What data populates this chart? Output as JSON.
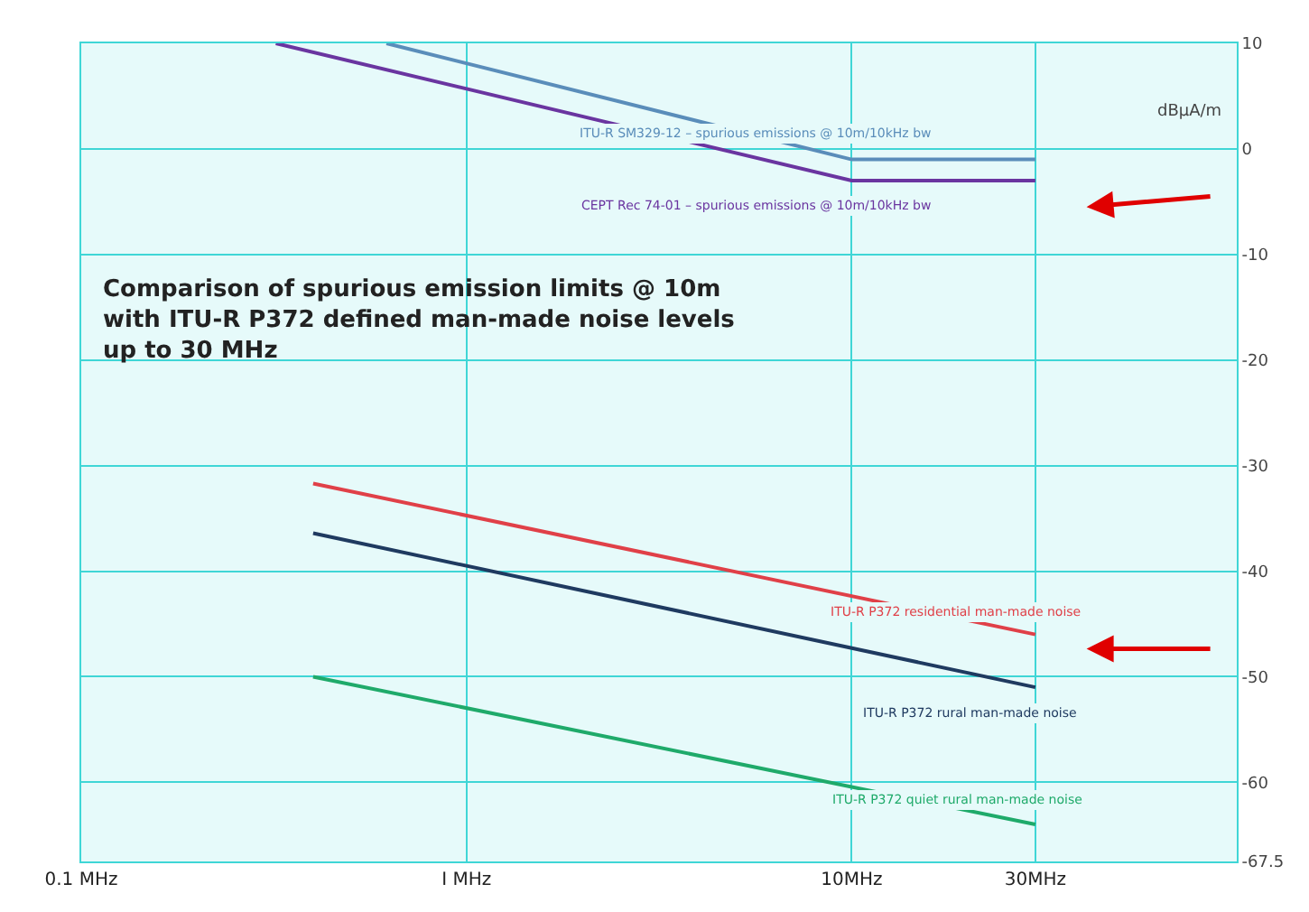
{
  "chart_data": {
    "type": "line",
    "title": "Comparison of spurious emission limits @ 10m\nwith ITU-R P372 defined man-made noise levels\nup to 30 MHz",
    "ylabel": "dBµA/m",
    "series": [
      {
        "name": "ITU-R SM329-12 – spurious emissions @ 10m/10kHz bw",
        "color": "#5a8dba",
        "x": [
          0.62,
          10,
          30
        ],
        "values": [
          10,
          -1,
          -1
        ]
      },
      {
        "name": "CEPT Rec 74-01 – spurious emissions @ 10m/10kHz bw",
        "color": "#6a35a0",
        "x": [
          0.32,
          10,
          30
        ],
        "values": [
          10,
          -3,
          -3
        ]
      },
      {
        "name": "ITU-R P372 residential man-made noise",
        "color": "#e04048",
        "x": [
          0.4,
          30
        ],
        "values": [
          -31.7,
          -46
        ]
      },
      {
        "name": "ITU-R P372 rural man-made noise",
        "color": "#1f3a60",
        "x": [
          0.4,
          30
        ],
        "values": [
          -36.4,
          -51
        ]
      },
      {
        "name": "ITU-R P372 quiet rural man-made noise",
        "color": "#1faa6a",
        "x": [
          0.4,
          30
        ],
        "values": [
          -50,
          -64
        ]
      }
    ],
    "log": "x",
    "xlim": [
      0.1,
      100
    ],
    "xticks": [
      {
        "value": 0.1,
        "label": "0.1 MHz"
      },
      {
        "value": 1,
        "label": "I MHz"
      },
      {
        "value": 10,
        "label": "10MHz"
      },
      {
        "value": 30,
        "label": "30MHz"
      }
    ],
    "ylim": [
      -67.5,
      10
    ],
    "yticks": [
      10,
      0,
      -10,
      -20,
      -30,
      -40,
      -50,
      -60,
      -67.5
    ],
    "grid": true,
    "legend": false,
    "marker": "none",
    "line_style": "solid"
  }
}
